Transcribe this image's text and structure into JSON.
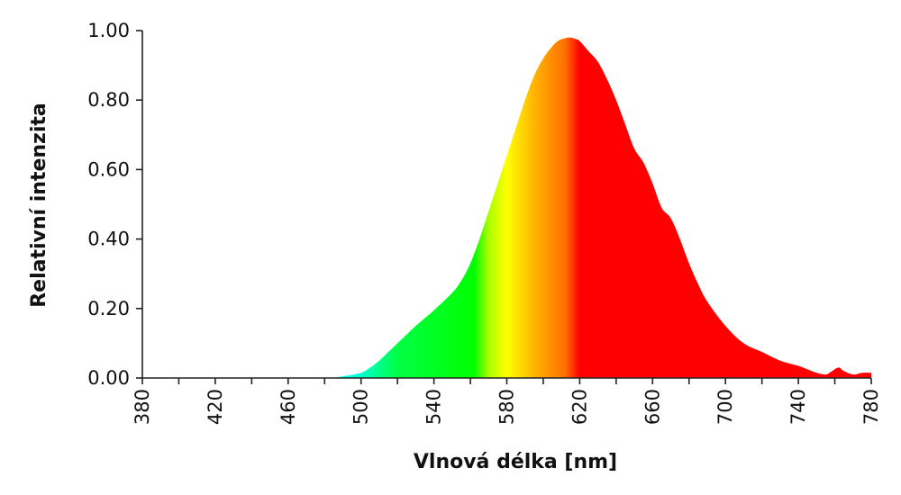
{
  "chart_data": {
    "type": "area",
    "title": "",
    "xlabel": "Vlnová délka [nm]",
    "ylabel": "Relativní intenzita",
    "xlim": [
      380,
      780
    ],
    "ylim": [
      0,
      1.0
    ],
    "x_ticks": [
      "380",
      "420",
      "460",
      "500",
      "540",
      "580",
      "620",
      "660",
      "700",
      "740",
      "780"
    ],
    "y_ticks": [
      "0.00",
      "0.20",
      "0.40",
      "0.60",
      "0.80",
      "1.00"
    ],
    "grid": false,
    "fill_gradient": [
      {
        "x": 480,
        "color": "#00ffff"
      },
      {
        "x": 500,
        "color": "#00ffcc"
      },
      {
        "x": 520,
        "color": "#00ff44"
      },
      {
        "x": 562,
        "color": "#00ff00"
      },
      {
        "x": 570,
        "color": "#aaff00"
      },
      {
        "x": 580,
        "color": "#ffff00"
      },
      {
        "x": 596,
        "color": "#ffb000"
      },
      {
        "x": 612,
        "color": "#ff7000"
      },
      {
        "x": 620,
        "color": "#ff0000"
      },
      {
        "x": 780,
        "color": "#ff0000"
      }
    ],
    "series": [
      {
        "x": [
          380,
          460,
          480,
          490,
          500,
          505,
          510,
          515,
          520,
          525,
          530,
          540,
          550,
          555,
          560,
          565,
          570,
          575,
          580,
          585,
          590,
          595,
          600,
          605,
          608,
          610,
          612,
          615,
          618,
          620,
          625,
          630,
          635,
          640,
          645,
          650,
          655,
          660,
          665,
          670,
          675,
          680,
          685,
          690,
          700,
          710,
          720,
          730,
          740,
          745,
          750,
          755,
          758,
          762,
          765,
          770,
          775,
          780
        ],
        "values": [
          0,
          0,
          0,
          0.005,
          0.015,
          0.03,
          0.05,
          0.075,
          0.1,
          0.125,
          0.15,
          0.195,
          0.245,
          0.28,
          0.33,
          0.4,
          0.48,
          0.56,
          0.64,
          0.72,
          0.8,
          0.87,
          0.92,
          0.955,
          0.97,
          0.975,
          0.978,
          0.98,
          0.975,
          0.97,
          0.94,
          0.91,
          0.86,
          0.8,
          0.73,
          0.66,
          0.62,
          0.56,
          0.49,
          0.46,
          0.4,
          0.33,
          0.27,
          0.22,
          0.15,
          0.1,
          0.075,
          0.05,
          0.035,
          0.025,
          0.015,
          0.01,
          0.018,
          0.03,
          0.02,
          0.01,
          0.015,
          0.015
        ]
      }
    ]
  }
}
